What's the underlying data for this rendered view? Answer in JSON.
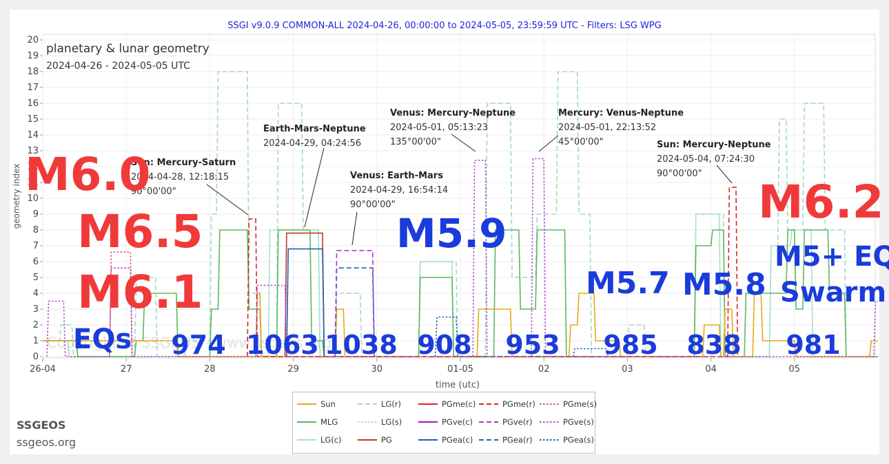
{
  "header": {
    "title": "SSGI v9.0.9 COMMON-ALL 2024-04-26, 00:00:00 to 2024-05-05, 23:59:59 UTC - Filters: LSG WPG"
  },
  "brand": {
    "name": "SSGEOS",
    "url": "ssgeos.org"
  },
  "watermark": "Copyright © SSGEOS - www.ssgeos.org",
  "colors": {
    "Sun": "#e6a817",
    "MLG": "#5cb85c",
    "LG(c)": "#a8e0c8",
    "LG(r)": "#9fd9c4",
    "LG(s)": "#a8e0c8",
    "PG": "#c0392b",
    "PGme": "#dd2222",
    "PGve": "#a63cc8",
    "PGea": "#1f5fb4",
    "eq_red": "#f03a3a",
    "eq_blue": "#1a3cdb",
    "header": "#2222dd"
  },
  "chart_data": {
    "type": "line",
    "title": "planetary & lunar geometry",
    "subtitle": "2024-04-26 - 2024-05-05 UTC",
    "xlabel": "time (utc)",
    "ylabel": "geometry index",
    "xlim": [
      0,
      10
    ],
    "ylim": [
      0,
      20
    ],
    "x_ticks": [
      {
        "x": 0,
        "label": "26-04"
      },
      {
        "x": 1,
        "label": "27"
      },
      {
        "x": 2,
        "label": "28"
      },
      {
        "x": 3,
        "label": "29"
      },
      {
        "x": 4,
        "label": "30"
      },
      {
        "x": 5,
        "label": "01-05"
      },
      {
        "x": 6,
        "label": "02"
      },
      {
        "x": 7,
        "label": "03"
      },
      {
        "x": 8,
        "label": "04"
      },
      {
        "x": 9,
        "label": "05"
      }
    ],
    "y_ticks": [
      0,
      1,
      2,
      3,
      4,
      5,
      6,
      7,
      8,
      9,
      10,
      11,
      12,
      13,
      14,
      15,
      16,
      17,
      18,
      19,
      20
    ],
    "grid": true,
    "legend_position": "bottom",
    "series": [
      {
        "name": "LG(r)",
        "style": "dashed",
        "color": "#9fd9c4",
        "points": [
          [
            0,
            1
          ],
          [
            0.2,
            1
          ],
          [
            0.22,
            2
          ],
          [
            0.35,
            2
          ],
          [
            0.37,
            0
          ],
          [
            1.1,
            0
          ],
          [
            1.12,
            5
          ],
          [
            1.35,
            5
          ],
          [
            1.37,
            0
          ],
          [
            1.7,
            0
          ],
          [
            1.72,
            1
          ],
          [
            2.0,
            1
          ],
          [
            2.02,
            9
          ],
          [
            2.08,
            9
          ],
          [
            2.1,
            18
          ],
          [
            2.45,
            18
          ],
          [
            2.47,
            4
          ],
          [
            2.6,
            4
          ],
          [
            2.62,
            0
          ],
          [
            2.8,
            0
          ],
          [
            2.82,
            16
          ],
          [
            3.1,
            16
          ],
          [
            3.12,
            8
          ],
          [
            3.3,
            8
          ],
          [
            3.32,
            0
          ],
          [
            3.5,
            0
          ],
          [
            3.52,
            4
          ],
          [
            3.8,
            4
          ],
          [
            3.82,
            0
          ],
          [
            4.5,
            0
          ],
          [
            4.52,
            6
          ],
          [
            4.95,
            6
          ],
          [
            4.97,
            0
          ],
          [
            5.3,
            0
          ],
          [
            5.32,
            16
          ],
          [
            5.6,
            16
          ],
          [
            5.62,
            5
          ],
          [
            5.9,
            5
          ],
          [
            5.92,
            9
          ],
          [
            6.15,
            9
          ],
          [
            6.17,
            18
          ],
          [
            6.4,
            18
          ],
          [
            6.42,
            9
          ],
          [
            6.55,
            9
          ],
          [
            6.57,
            0
          ],
          [
            7.0,
            0
          ],
          [
            7.02,
            2
          ],
          [
            7.2,
            2
          ],
          [
            7.22,
            0
          ],
          [
            7.8,
            0
          ],
          [
            7.82,
            9
          ],
          [
            8.15,
            9
          ],
          [
            8.17,
            0
          ],
          [
            8.7,
            0
          ],
          [
            8.72,
            7
          ],
          [
            8.8,
            7
          ],
          [
            8.82,
            15
          ],
          [
            8.9,
            15
          ],
          [
            8.92,
            8
          ],
          [
            9.1,
            8
          ],
          [
            9.12,
            16
          ],
          [
            9.35,
            16
          ],
          [
            9.37,
            8
          ],
          [
            9.6,
            8
          ],
          [
            9.62,
            0
          ],
          [
            10,
            0
          ]
        ]
      },
      {
        "name": "LG(c)",
        "style": "solid",
        "color": "#a8e0c8",
        "points": [
          [
            0,
            1
          ],
          [
            0.3,
            1
          ],
          [
            0.32,
            0
          ],
          [
            2.7,
            0
          ],
          [
            2.72,
            8
          ],
          [
            3.3,
            8
          ],
          [
            3.32,
            0
          ],
          [
            4.5,
            0
          ],
          [
            4.52,
            6
          ],
          [
            4.9,
            6
          ],
          [
            4.92,
            0
          ],
          [
            7.8,
            0
          ],
          [
            7.82,
            9
          ],
          [
            8.1,
            9
          ],
          [
            8.12,
            0
          ],
          [
            8.7,
            0
          ],
          [
            8.72,
            7
          ],
          [
            8.95,
            7
          ],
          [
            8.97,
            8
          ],
          [
            9.2,
            8
          ],
          [
            9.22,
            0
          ],
          [
            10,
            0
          ]
        ]
      },
      {
        "name": "MLG",
        "style": "solid",
        "color": "#5cb85c",
        "points": [
          [
            0,
            1
          ],
          [
            0.4,
            1
          ],
          [
            0.42,
            0
          ],
          [
            1.1,
            0
          ],
          [
            1.12,
            1
          ],
          [
            1.2,
            1
          ],
          [
            1.22,
            4
          ],
          [
            1.6,
            4
          ],
          [
            1.62,
            0
          ],
          [
            2.0,
            0
          ],
          [
            2.02,
            3
          ],
          [
            2.1,
            3
          ],
          [
            2.12,
            8
          ],
          [
            2.45,
            8
          ],
          [
            2.47,
            3
          ],
          [
            2.6,
            3
          ],
          [
            2.62,
            0
          ],
          [
            2.8,
            0
          ],
          [
            2.82,
            8
          ],
          [
            3.2,
            8
          ],
          [
            3.22,
            1
          ],
          [
            3.35,
            1
          ],
          [
            3.37,
            0
          ],
          [
            4.5,
            0
          ],
          [
            4.52,
            5
          ],
          [
            4.9,
            5
          ],
          [
            4.92,
            0
          ],
          [
            5.4,
            0
          ],
          [
            5.42,
            8
          ],
          [
            5.7,
            8
          ],
          [
            5.72,
            3
          ],
          [
            5.9,
            3
          ],
          [
            5.92,
            8
          ],
          [
            6.25,
            8
          ],
          [
            6.27,
            0
          ],
          [
            7.8,
            0
          ],
          [
            7.82,
            7
          ],
          [
            8.0,
            7
          ],
          [
            8.02,
            8
          ],
          [
            8.15,
            8
          ],
          [
            8.17,
            0
          ],
          [
            8.4,
            0
          ],
          [
            8.42,
            4
          ],
          [
            8.9,
            4
          ],
          [
            8.92,
            8
          ],
          [
            9.0,
            8
          ],
          [
            9.02,
            3
          ],
          [
            9.1,
            3
          ],
          [
            9.12,
            8
          ],
          [
            9.4,
            8
          ],
          [
            9.42,
            4
          ],
          [
            9.6,
            4
          ],
          [
            9.62,
            0
          ],
          [
            10,
            0
          ]
        ]
      },
      {
        "name": "Sun",
        "style": "solid",
        "color": "#e6a817",
        "points": [
          [
            0,
            1
          ],
          [
            1.6,
            1
          ],
          [
            1.62,
            0
          ],
          [
            2.55,
            0
          ],
          [
            2.57,
            4
          ],
          [
            2.6,
            4
          ],
          [
            2.62,
            0
          ],
          [
            3.5,
            0
          ],
          [
            3.52,
            3
          ],
          [
            3.6,
            3
          ],
          [
            3.62,
            0
          ],
          [
            5.2,
            0
          ],
          [
            5.22,
            3
          ],
          [
            5.6,
            3
          ],
          [
            5.62,
            0
          ],
          [
            6.3,
            0
          ],
          [
            6.32,
            2
          ],
          [
            6.4,
            2
          ],
          [
            6.42,
            4
          ],
          [
            6.6,
            4
          ],
          [
            6.62,
            1
          ],
          [
            6.9,
            1
          ],
          [
            6.92,
            0
          ],
          [
            7.9,
            0
          ],
          [
            7.92,
            2
          ],
          [
            8.1,
            2
          ],
          [
            8.12,
            0
          ],
          [
            8.15,
            0
          ],
          [
            8.17,
            3
          ],
          [
            8.25,
            3
          ],
          [
            8.27,
            0
          ],
          [
            8.5,
            0
          ],
          [
            8.52,
            4
          ],
          [
            8.6,
            4
          ],
          [
            8.62,
            1
          ],
          [
            9.0,
            1
          ],
          [
            9.02,
            0
          ],
          [
            9.9,
            0
          ],
          [
            9.92,
            1
          ],
          [
            10,
            1
          ]
        ]
      },
      {
        "name": "PGme(r)",
        "style": "dashed",
        "color": "#dd2222",
        "points": [
          [
            2.45,
            0
          ],
          [
            2.47,
            8.7
          ],
          [
            2.55,
            8.7
          ],
          [
            2.57,
            0
          ],
          [
            8.2,
            0
          ],
          [
            8.22,
            10.7
          ],
          [
            8.3,
            10.7
          ],
          [
            8.32,
            0
          ]
        ]
      },
      {
        "name": "PGme(s)",
        "style": "dotted",
        "color": "#dd5577",
        "points": [
          [
            0.8,
            0
          ],
          [
            0.82,
            6.6
          ],
          [
            1.05,
            6.6
          ],
          [
            1.07,
            0
          ]
        ]
      },
      {
        "name": "PG",
        "style": "solid",
        "color": "#c0392b",
        "points": [
          [
            2.9,
            0
          ],
          [
            2.92,
            7.8
          ],
          [
            3.35,
            7.8
          ],
          [
            3.37,
            0
          ]
        ]
      },
      {
        "name": "PGea(c)",
        "style": "solid",
        "color": "#1f5fb4",
        "points": [
          [
            2.92,
            0
          ],
          [
            2.94,
            6.8
          ],
          [
            3.35,
            6.8
          ],
          [
            3.37,
            0
          ]
        ]
      },
      {
        "name": "PGea(r)",
        "style": "dashed",
        "color": "#1f5fb4",
        "points": [
          [
            3.5,
            0
          ],
          [
            3.52,
            5.6
          ],
          [
            3.95,
            5.6
          ],
          [
            3.97,
            0
          ]
        ]
      },
      {
        "name": "PGea(s)",
        "style": "dotted",
        "color": "#1f5fb4",
        "points": [
          [
            4.7,
            0
          ],
          [
            4.72,
            2.5
          ],
          [
            4.95,
            2.5
          ],
          [
            4.97,
            0
          ],
          [
            6.35,
            0
          ],
          [
            6.37,
            0.5
          ],
          [
            6.75,
            0.5
          ],
          [
            6.77,
            0
          ]
        ]
      },
      {
        "name": "PGve(r)",
        "style": "dashed",
        "color": "#a63cc8",
        "points": [
          [
            3.5,
            0
          ],
          [
            3.52,
            6.7
          ],
          [
            3.95,
            6.7
          ],
          [
            3.97,
            0
          ]
        ]
      },
      {
        "name": "PGve(s)",
        "style": "dotted",
        "color": "#b04ccf",
        "points": [
          [
            0.05,
            0
          ],
          [
            0.07,
            3.5
          ],
          [
            0.25,
            3.5
          ],
          [
            0.27,
            0
          ],
          [
            0.8,
            0
          ],
          [
            0.82,
            5.6
          ],
          [
            1.05,
            5.6
          ],
          [
            1.07,
            0
          ],
          [
            2.55,
            0
          ],
          [
            2.57,
            4.5
          ],
          [
            2.9,
            4.5
          ],
          [
            2.92,
            0
          ],
          [
            5.15,
            0
          ],
          [
            5.17,
            12.4
          ],
          [
            5.3,
            12.4
          ],
          [
            5.32,
            0
          ],
          [
            5.85,
            0
          ],
          [
            5.87,
            12.5
          ],
          [
            6.0,
            12.5
          ],
          [
            6.02,
            0
          ],
          [
            9.95,
            0
          ],
          [
            9.97,
            3.5
          ],
          [
            10,
            3.5
          ]
        ]
      }
    ],
    "annotations": [
      {
        "head": "Sun:     Mercury-Saturn",
        "date": "2024-04-28, 12:18:15",
        "angle": "90°00'00\""
      },
      {
        "head": "Earth-Mars-Neptune",
        "date": "2024-04-29, 04:24:56",
        "angle": ""
      },
      {
        "head": "Venus:   Earth-Mars",
        "date": "2024-04-29, 16:54:14",
        "angle": "90°00'00\""
      },
      {
        "head": "Venus:   Mercury-Neptune",
        "date": "2024-05-01, 05:13:23",
        "angle": "135°00'00\""
      },
      {
        "head": "Mercury: Venus-Neptune",
        "date": "2024-05-01, 22:13:52",
        "angle": "45°00'00\""
      },
      {
        "head": "Sun:     Mercury-Neptune",
        "date": "2024-05-04, 07:24:30",
        "angle": "90°00'00\""
      }
    ],
    "eq_labels": [
      {
        "text": "M6.0",
        "color": "red"
      },
      {
        "text": "M6.5",
        "color": "red"
      },
      {
        "text": "M6.1",
        "color": "red"
      },
      {
        "text": "EQs",
        "color": "blue"
      },
      {
        "text": "M5.9",
        "color": "blue"
      },
      {
        "text": "M5.7",
        "color": "blue"
      },
      {
        "text": "M5.8",
        "color": "blue"
      },
      {
        "text": "M6.2",
        "color": "red"
      },
      {
        "text": "M5+ EQ",
        "color": "blue"
      },
      {
        "text": "Swarm",
        "color": "blue"
      }
    ],
    "eq_counts": [
      "974",
      "1063",
      "1038",
      "908",
      "953",
      "985",
      "838",
      "981"
    ]
  },
  "legend": [
    {
      "label": "Sun",
      "color": "#e6a817",
      "dash": "solid"
    },
    {
      "label": "LG(r)",
      "color": "#9fd9c4",
      "dash": "dashed"
    },
    {
      "label": "PGme(c)",
      "color": "#dd2222",
      "dash": "solid"
    },
    {
      "label": "PGme(r)",
      "color": "#dd2222",
      "dash": "dashed"
    },
    {
      "label": "PGme(s)",
      "color": "#dd5577",
      "dash": "dotted"
    },
    {
      "label": "MLG",
      "color": "#5cb85c",
      "dash": "solid"
    },
    {
      "label": "LG(s)",
      "color": "#a8e0c8",
      "dash": "dotted"
    },
    {
      "label": "PGve(c)",
      "color": "#9b1fb0",
      "dash": "solid"
    },
    {
      "label": "PGve(r)",
      "color": "#a63cc8",
      "dash": "dashed"
    },
    {
      "label": "PGve(s)",
      "color": "#b04ccf",
      "dash": "dotted"
    },
    {
      "label": "LG(c)",
      "color": "#a8e0c8",
      "dash": "solid"
    },
    {
      "label": "PG",
      "color": "#c0392b",
      "dash": "solid"
    },
    {
      "label": "PGea(c)",
      "color": "#1f5fb4",
      "dash": "solid"
    },
    {
      "label": "PGea(r)",
      "color": "#1f5fb4",
      "dash": "dashed"
    },
    {
      "label": "PGea(s)",
      "color": "#1f5fb4",
      "dash": "dotted"
    }
  ]
}
